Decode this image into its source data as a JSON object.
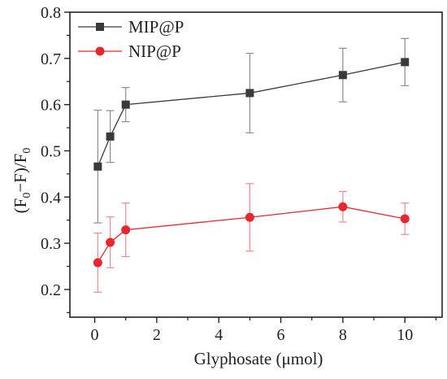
{
  "chart_data": {
    "type": "line",
    "xlabel": "Glyphosate (μmol)",
    "ylabel_parts": {
      "open": "(F",
      "sub1": "0",
      "mid": "−F)/F",
      "sub2": "0"
    },
    "xlim": [
      -0.8,
      11.2
    ],
    "ylim": [
      0.14,
      0.8
    ],
    "xticks": [
      0,
      2,
      4,
      6,
      8,
      10
    ],
    "yticks": [
      0.2,
      0.3,
      0.4,
      0.5,
      0.6,
      0.7,
      0.8
    ],
    "xtick_labels": [
      "0",
      "2",
      "4",
      "6",
      "8",
      "10"
    ],
    "ytick_labels": [
      "0.2",
      "0.3",
      "0.4",
      "0.5",
      "0.6",
      "0.7",
      "0.8"
    ],
    "grid": false,
    "legend_position": "top-left",
    "x": [
      0.1,
      0.5,
      1,
      5,
      8,
      10
    ],
    "series": [
      {
        "name": "MIP@P",
        "color": "#3a3a3a",
        "marker": "square",
        "values": [
          0.466,
          0.531,
          0.6,
          0.625,
          0.664,
          0.692
        ],
        "errors": [
          0.122,
          0.056,
          0.037,
          0.086,
          0.058,
          0.051
        ]
      },
      {
        "name": "NIP@P",
        "color": "#e8262e",
        "marker": "circle",
        "values": [
          0.258,
          0.302,
          0.329,
          0.356,
          0.379,
          0.353
        ],
        "errors": [
          0.064,
          0.055,
          0.058,
          0.073,
          0.033,
          0.034
        ]
      }
    ]
  }
}
